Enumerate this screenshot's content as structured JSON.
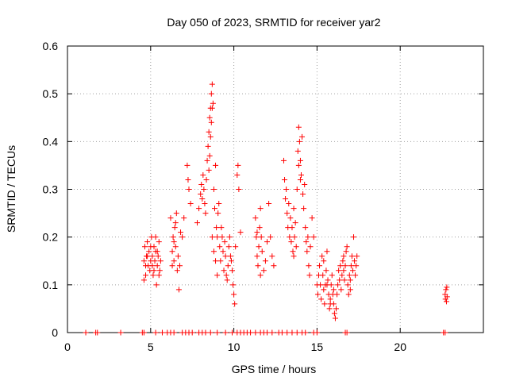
{
  "chart_data": {
    "type": "scatter",
    "title": "Day 050 of 2023, SRMTID for receiver yar2",
    "xlabel": "GPS time / hours",
    "ylabel": "SRMTID / TECUs",
    "xlim": [
      0,
      25
    ],
    "ylim": [
      0,
      0.6
    ],
    "xticks": [
      0,
      5,
      10,
      15,
      20
    ],
    "yticks": [
      0,
      0.1,
      0.2,
      0.3,
      0.4,
      0.5,
      0.6
    ],
    "xtick_labels": [
      "0",
      "5",
      "10",
      "15",
      "20"
    ],
    "ytick_labels": [
      "0",
      "0.1",
      "0.2",
      "0.3",
      "0.4",
      "0.5",
      "0.6"
    ],
    "grid": true,
    "marker": "+",
    "color": "#ff0000",
    "series": [
      {
        "name": "SRMTID",
        "points": [
          [
            1.1,
            0
          ],
          [
            1.7,
            0
          ],
          [
            1.8,
            0
          ],
          [
            3.2,
            0
          ],
          [
            4.5,
            0
          ],
          [
            4.6,
            0
          ],
          [
            5.3,
            0
          ],
          [
            5.7,
            0
          ],
          [
            6.0,
            0
          ],
          [
            6.2,
            0
          ],
          [
            6.4,
            0
          ],
          [
            6.9,
            0
          ],
          [
            7.1,
            0
          ],
          [
            7.3,
            0
          ],
          [
            7.5,
            0
          ],
          [
            7.9,
            0
          ],
          [
            8.1,
            0
          ],
          [
            8.3,
            0
          ],
          [
            8.6,
            0
          ],
          [
            9.0,
            0
          ],
          [
            9.5,
            0
          ],
          [
            9.9,
            0
          ],
          [
            10.2,
            0
          ],
          [
            10.4,
            0
          ],
          [
            10.6,
            0
          ],
          [
            10.8,
            0
          ],
          [
            11.0,
            0
          ],
          [
            11.3,
            0
          ],
          [
            11.6,
            0
          ],
          [
            11.8,
            0
          ],
          [
            12.0,
            0
          ],
          [
            12.3,
            0
          ],
          [
            12.7,
            0
          ],
          [
            12.9,
            0
          ],
          [
            13.2,
            0
          ],
          [
            13.5,
            0
          ],
          [
            13.8,
            0
          ],
          [
            14.1,
            0
          ],
          [
            14.3,
            0
          ],
          [
            14.8,
            0
          ],
          [
            15.0,
            0
          ],
          [
            16.7,
            0
          ],
          [
            16.8,
            0
          ],
          [
            22.6,
            0
          ],
          [
            22.7,
            0
          ],
          [
            4.6,
            0.15
          ],
          [
            4.65,
            0.18
          ],
          [
            4.7,
            0.12
          ],
          [
            4.75,
            0.16
          ],
          [
            4.8,
            0.19
          ],
          [
            4.85,
            0.14
          ],
          [
            4.9,
            0.17
          ],
          [
            4.95,
            0.13
          ],
          [
            5.0,
            0.15
          ],
          [
            5.05,
            0.2
          ],
          [
            5.1,
            0.16
          ],
          [
            5.15,
            0.12
          ],
          [
            5.2,
            0.18
          ],
          [
            5.25,
            0.15
          ],
          [
            5.3,
            0.17
          ],
          [
            5.35,
            0.1
          ],
          [
            5.4,
            0.14
          ],
          [
            5.45,
            0.16
          ],
          [
            5.5,
            0.19
          ],
          [
            5.55,
            0.13
          ],
          [
            5.6,
            0.15
          ],
          [
            4.6,
            0.11
          ],
          [
            4.7,
            0.14
          ],
          [
            4.8,
            0.16
          ],
          [
            5.0,
            0.18
          ],
          [
            5.1,
            0.14
          ],
          [
            5.2,
            0.13
          ],
          [
            5.3,
            0.2
          ],
          [
            5.4,
            0.17
          ],
          [
            5.5,
            0.12
          ],
          [
            6.2,
            0.24
          ],
          [
            6.3,
            0.17
          ],
          [
            6.35,
            0.2
          ],
          [
            6.4,
            0.15
          ],
          [
            6.45,
            0.22
          ],
          [
            6.5,
            0.18
          ],
          [
            6.55,
            0.25
          ],
          [
            6.6,
            0.13
          ],
          [
            6.65,
            0.16
          ],
          [
            6.7,
            0.09
          ],
          [
            6.75,
            0.14
          ],
          [
            6.8,
            0.21
          ],
          [
            6.9,
            0.2
          ],
          [
            7.0,
            0.24
          ],
          [
            6.5,
            0.23
          ],
          [
            6.4,
            0.19
          ],
          [
            6.3,
            0.14
          ],
          [
            7.2,
            0.35
          ],
          [
            7.25,
            0.32
          ],
          [
            7.3,
            0.3
          ],
          [
            7.4,
            0.27
          ],
          [
            7.8,
            0.23
          ],
          [
            7.9,
            0.26
          ],
          [
            8.0,
            0.29
          ],
          [
            8.05,
            0.31
          ],
          [
            8.1,
            0.28
          ],
          [
            8.15,
            0.33
          ],
          [
            8.2,
            0.3
          ],
          [
            8.25,
            0.27
          ],
          [
            8.3,
            0.25
          ],
          [
            8.35,
            0.32
          ],
          [
            8.4,
            0.36
          ],
          [
            8.45,
            0.39
          ],
          [
            8.5,
            0.42
          ],
          [
            8.55,
            0.45
          ],
          [
            8.6,
            0.47
          ],
          [
            8.65,
            0.5
          ],
          [
            8.7,
            0.52
          ],
          [
            8.75,
            0.48
          ],
          [
            8.6,
            0.41
          ],
          [
            8.55,
            0.37
          ],
          [
            8.5,
            0.34
          ],
          [
            8.65,
            0.44
          ],
          [
            8.7,
            0.47
          ],
          [
            8.8,
            0.3
          ],
          [
            8.85,
            0.26
          ],
          [
            8.9,
            0.35
          ],
          [
            8.95,
            0.22
          ],
          [
            9.0,
            0.2
          ],
          [
            9.05,
            0.25
          ],
          [
            9.1,
            0.27
          ],
          [
            9.15,
            0.18
          ],
          [
            9.2,
            0.15
          ],
          [
            9.25,
            0.22
          ],
          [
            9.3,
            0.2
          ],
          [
            9.35,
            0.17
          ],
          [
            9.4,
            0.13
          ],
          [
            9.45,
            0.19
          ],
          [
            9.5,
            0.16
          ],
          [
            9.55,
            0.12
          ],
          [
            9.6,
            0.11
          ],
          [
            9.65,
            0.14
          ],
          [
            9.7,
            0.18
          ],
          [
            9.75,
            0.2
          ],
          [
            9.8,
            0.16
          ],
          [
            9.85,
            0.15
          ],
          [
            9.9,
            0.13
          ],
          [
            9.95,
            0.1
          ],
          [
            10.0,
            0.08
          ],
          [
            10.05,
            0.06
          ],
          [
            10.1,
            0.18
          ],
          [
            10.2,
            0.33
          ],
          [
            10.25,
            0.35
          ],
          [
            10.3,
            0.3
          ],
          [
            10.4,
            0.21
          ],
          [
            8.7,
            0.2
          ],
          [
            8.8,
            0.17
          ],
          [
            8.9,
            0.15
          ],
          [
            9.0,
            0.12
          ],
          [
            11.3,
            0.24
          ],
          [
            11.35,
            0.2
          ],
          [
            11.4,
            0.16
          ],
          [
            11.45,
            0.14
          ],
          [
            11.5,
            0.18
          ],
          [
            11.55,
            0.22
          ],
          [
            11.6,
            0.26
          ],
          [
            11.65,
            0.2
          ],
          [
            11.7,
            0.17
          ],
          [
            11.8,
            0.13
          ],
          [
            11.9,
            0.15
          ],
          [
            12.0,
            0.19
          ],
          [
            12.1,
            0.27
          ],
          [
            12.2,
            0.2
          ],
          [
            12.3,
            0.16
          ],
          [
            12.4,
            0.14
          ],
          [
            11.4,
            0.21
          ],
          [
            11.6,
            0.12
          ],
          [
            13.0,
            0.36
          ],
          [
            13.05,
            0.32
          ],
          [
            13.1,
            0.28
          ],
          [
            13.15,
            0.3
          ],
          [
            13.2,
            0.25
          ],
          [
            13.25,
            0.22
          ],
          [
            13.3,
            0.27
          ],
          [
            13.35,
            0.2
          ],
          [
            13.4,
            0.24
          ],
          [
            13.45,
            0.19
          ],
          [
            13.5,
            0.22
          ],
          [
            13.55,
            0.17
          ],
          [
            13.6,
            0.26
          ],
          [
            13.65,
            0.2
          ],
          [
            13.7,
            0.23
          ],
          [
            13.75,
            0.18
          ],
          [
            13.8,
            0.3
          ],
          [
            13.85,
            0.38
          ],
          [
            13.9,
            0.43
          ],
          [
            13.95,
            0.4
          ],
          [
            14.0,
            0.36
          ],
          [
            14.05,
            0.33
          ],
          [
            14.1,
            0.41
          ],
          [
            14.15,
            0.29
          ],
          [
            14.2,
            0.26
          ],
          [
            14.25,
            0.31
          ],
          [
            14.3,
            0.22
          ],
          [
            14.35,
            0.19
          ],
          [
            14.4,
            0.17
          ],
          [
            14.45,
            0.2
          ],
          [
            14.5,
            0.14
          ],
          [
            14.55,
            0.12
          ],
          [
            14.6,
            0.18
          ],
          [
            14.7,
            0.24
          ],
          [
            14.8,
            0.2
          ],
          [
            13.9,
            0.35
          ],
          [
            14.0,
            0.32
          ],
          [
            13.6,
            0.16
          ],
          [
            15.0,
            0.1
          ],
          [
            15.05,
            0.08
          ],
          [
            15.1,
            0.12
          ],
          [
            15.15,
            0.14
          ],
          [
            15.2,
            0.1
          ],
          [
            15.25,
            0.07
          ],
          [
            15.3,
            0.16
          ],
          [
            15.35,
            0.12
          ],
          [
            15.4,
            0.09
          ],
          [
            15.45,
            0.06
          ],
          [
            15.5,
            0.1
          ],
          [
            15.55,
            0.13
          ],
          [
            15.6,
            0.17
          ],
          [
            15.65,
            0.11
          ],
          [
            15.7,
            0.08
          ],
          [
            15.75,
            0.05
          ],
          [
            15.8,
            0.07
          ],
          [
            15.85,
            0.1
          ],
          [
            15.9,
            0.12
          ],
          [
            15.95,
            0.08
          ],
          [
            16.0,
            0.06
          ],
          [
            16.05,
            0.04
          ],
          [
            16.1,
            0.03
          ],
          [
            16.15,
            0.05
          ],
          [
            16.2,
            0.08
          ],
          [
            16.25,
            0.1
          ],
          [
            16.3,
            0.13
          ],
          [
            16.35,
            0.11
          ],
          [
            16.4,
            0.14
          ],
          [
            16.45,
            0.09
          ],
          [
            16.5,
            0.12
          ],
          [
            16.55,
            0.15
          ],
          [
            16.6,
            0.13
          ],
          [
            16.65,
            0.11
          ],
          [
            16.7,
            0.14
          ],
          [
            16.75,
            0.17
          ],
          [
            16.8,
            0.18
          ],
          [
            16.85,
            0.1
          ],
          [
            16.9,
            0.08
          ],
          [
            16.95,
            0.12
          ],
          [
            17.0,
            0.11
          ],
          [
            17.05,
            0.14
          ],
          [
            17.1,
            0.16
          ],
          [
            17.15,
            0.13
          ],
          [
            17.2,
            0.2
          ],
          [
            17.25,
            0.15
          ],
          [
            17.3,
            0.12
          ],
          [
            17.35,
            0.14
          ],
          [
            17.4,
            0.16
          ],
          [
            15.4,
            0.15
          ],
          [
            15.6,
            0.1
          ],
          [
            15.8,
            0.06
          ],
          [
            16.0,
            0.09
          ],
          [
            16.6,
            0.16
          ],
          [
            17.0,
            0.09
          ],
          [
            22.7,
            0.08
          ],
          [
            22.72,
            0.07
          ],
          [
            22.75,
            0.09
          ],
          [
            22.78,
            0.065
          ],
          [
            22.8,
            0.095
          ],
          [
            22.82,
            0.075
          ]
        ]
      }
    ]
  }
}
